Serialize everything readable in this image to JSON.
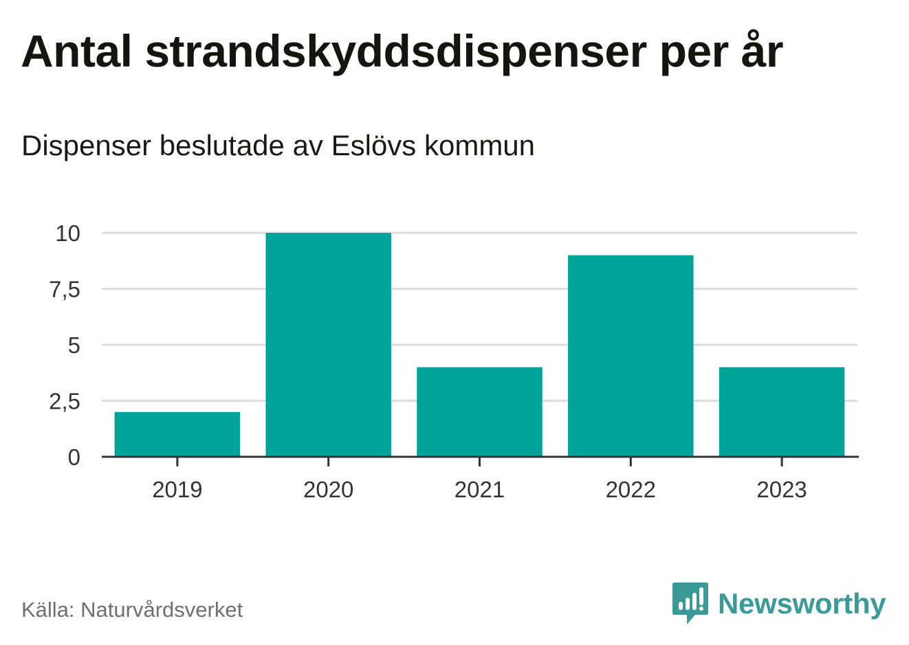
{
  "header": {
    "title": "Antal strandskyddsdispenser per år",
    "subtitle": "Dispenser beslutade av Eslövs kommun"
  },
  "footer": {
    "source": "Källa: Naturvårdsverket",
    "brand": "Newsworthy",
    "brand_icon": "newsworthy-chat-bars-icon",
    "brand_color": "#3a9a97"
  },
  "chart_data": {
    "type": "bar",
    "categories": [
      "2019",
      "2020",
      "2021",
      "2022",
      "2023"
    ],
    "values": [
      2,
      10,
      4,
      9,
      4
    ],
    "ylim": [
      0,
      10
    ],
    "yticks": [
      0,
      2.5,
      5,
      7.5,
      10
    ],
    "ytick_labels": [
      "0",
      "2,5",
      "5",
      "7,5",
      "10"
    ],
    "xlabel": "",
    "ylabel": "",
    "grid": true,
    "bar_color": "#00a39a",
    "grid_color": "#dcdcdc",
    "axis_color": "#333333"
  }
}
